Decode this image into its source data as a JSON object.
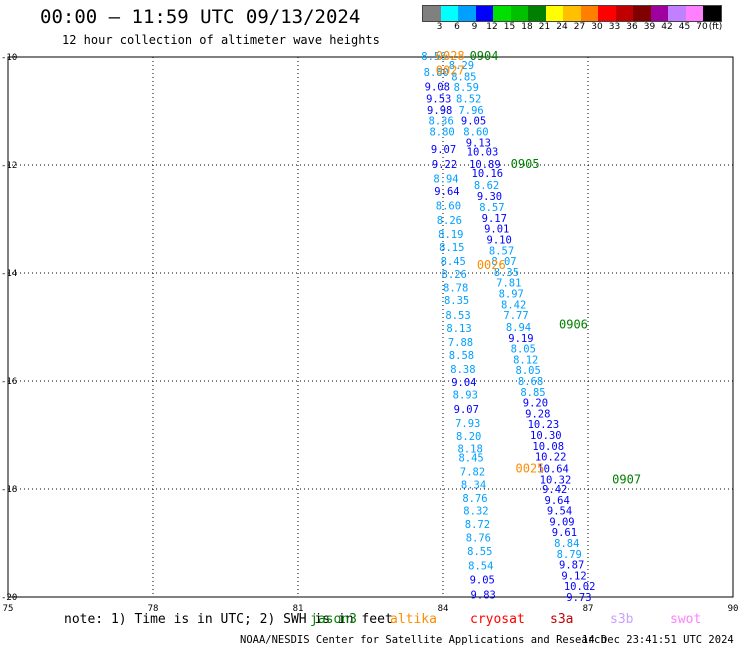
{
  "header": {
    "title": "00:00 – 11:59 UTC 09/13/2024",
    "subtitle": "12 hour collection of altimeter wave heights"
  },
  "legend": {
    "unit": "(ft)",
    "bins": [
      {
        "label": "3",
        "color": "#808080"
      },
      {
        "label": "6",
        "color": "#00ffff"
      },
      {
        "label": "9",
        "color": "#00a0ff"
      },
      {
        "label": "12",
        "color": "#0000ff"
      },
      {
        "label": "15",
        "color": "#00e000"
      },
      {
        "label": "18",
        "color": "#00c000"
      },
      {
        "label": "21",
        "color": "#008000"
      },
      {
        "label": "24",
        "color": "#ffff00"
      },
      {
        "label": "27",
        "color": "#ffc000"
      },
      {
        "label": "30",
        "color": "#ff8000"
      },
      {
        "label": "33",
        "color": "#ff0000"
      },
      {
        "label": "36",
        "color": "#c00000"
      },
      {
        "label": "39",
        "color": "#800000"
      },
      {
        "label": "42",
        "color": "#a000a0"
      },
      {
        "label": "45",
        "color": "#c080ff"
      },
      {
        "label": "70",
        "color": "#ff80ff"
      },
      {
        "label": "",
        "color": "#000000"
      }
    ]
  },
  "note": {
    "text": "note: 1) Time is in UTC; 2) SWH is in feet",
    "satellites": [
      {
        "name": "jason3",
        "color": "#008000"
      },
      {
        "name": "altika",
        "color": "#ff8c00"
      },
      {
        "name": "cryosat",
        "color": "#ff0000"
      },
      {
        "name": "s3a",
        "color": "#c00000"
      },
      {
        "name": "s3b",
        "color": "#c8a0ff"
      },
      {
        "name": "swot",
        "color": "#ff80ff"
      }
    ]
  },
  "footer": {
    "credit": "NOAA/NESDIS Center for Satellite Applications and Research",
    "date": "14 Dec 23:41:51 UTC 2024"
  },
  "chart_data": {
    "type": "scatter",
    "title": "00:00 – 11:59 UTC 09/13/2024",
    "subtitle": "12 hour collection of altimeter wave heights",
    "xlabel": "",
    "ylabel": "",
    "xlim": [
      75,
      90
    ],
    "ylim": [
      -20,
      -10
    ],
    "x_ticks": [
      75,
      78,
      81,
      84,
      87,
      90
    ],
    "y_ticks": [
      -10,
      -12,
      -14,
      -16,
      -18,
      -20
    ],
    "x_tick_labels": [
      "75",
      "78",
      "81",
      "84",
      "87",
      "90"
    ],
    "y_tick_labels": [
      "-10",
      "-12",
      "-14",
      "-16",
      "-18",
      "-20"
    ],
    "grid": true,
    "time_labels": [
      {
        "text": "0028",
        "x": 83.85,
        "y": -9.98,
        "color": "#ff8c00"
      },
      {
        "text": "0904",
        "x": 84.55,
        "y": -9.98,
        "color": "#008000"
      },
      {
        "text": "0027",
        "x": 83.85,
        "y": -10.25,
        "color": "#ff8c00"
      },
      {
        "text": "0905",
        "x": 85.4,
        "y": -11.98,
        "color": "#008000"
      },
      {
        "text": "0026",
        "x": 84.7,
        "y": -13.85,
        "color": "#ff8c00"
      },
      {
        "text": "0906",
        "x": 86.4,
        "y": -14.95,
        "color": "#008000"
      },
      {
        "text": "0025",
        "x": 85.5,
        "y": -17.62,
        "color": "#ff8c00"
      },
      {
        "text": "0907",
        "x": 87.5,
        "y": -17.82,
        "color": "#008000"
      }
    ],
    "points": [
      {
        "x": 83.55,
        "y": -9.98,
        "value": "8.56",
        "color": "#00a0ff"
      },
      {
        "x": 84.12,
        "y": -10.15,
        "value": "8.29",
        "color": "#00a0ff"
      },
      {
        "x": 83.6,
        "y": -10.28,
        "value": "8.80",
        "color": "#00a0ff"
      },
      {
        "x": 84.17,
        "y": -10.36,
        "value": "8.85",
        "color": "#00a0ff"
      },
      {
        "x": 83.62,
        "y": -10.55,
        "value": "9.08",
        "color": "#0000ff"
      },
      {
        "x": 84.22,
        "y": -10.56,
        "value": "8.59",
        "color": "#00a0ff"
      },
      {
        "x": 83.65,
        "y": -10.77,
        "value": "9.53",
        "color": "#0000ff"
      },
      {
        "x": 84.27,
        "y": -10.77,
        "value": "8.52",
        "color": "#00a0ff"
      },
      {
        "x": 83.67,
        "y": -10.98,
        "value": "9.98",
        "color": "#0000ff"
      },
      {
        "x": 84.32,
        "y": -10.98,
        "value": "7.96",
        "color": "#00a0ff"
      },
      {
        "x": 83.7,
        "y": -11.18,
        "value": "8.36",
        "color": "#00a0ff"
      },
      {
        "x": 84.37,
        "y": -11.18,
        "value": "9.05",
        "color": "#0000ff"
      },
      {
        "x": 83.72,
        "y": -11.38,
        "value": "8.80",
        "color": "#00a0ff"
      },
      {
        "x": 84.42,
        "y": -11.38,
        "value": "8.60",
        "color": "#00a0ff"
      },
      {
        "x": 84.47,
        "y": -11.58,
        "value": "9.13",
        "color": "#0000ff"
      },
      {
        "x": 83.75,
        "y": -11.7,
        "value": "9.07",
        "color": "#0000ff"
      },
      {
        "x": 84.49,
        "y": -11.75,
        "value": "10.03",
        "color": "#0000ff"
      },
      {
        "x": 83.77,
        "y": -11.98,
        "value": "9.22",
        "color": "#0000ff"
      },
      {
        "x": 84.54,
        "y": -11.98,
        "value": "10.89",
        "color": "#0000ff"
      },
      {
        "x": 83.8,
        "y": -12.25,
        "value": "8.94",
        "color": "#00a0ff"
      },
      {
        "x": 84.59,
        "y": -12.15,
        "value": "10.16",
        "color": "#0000ff"
      },
      {
        "x": 84.64,
        "y": -12.37,
        "value": "8.62",
        "color": "#00a0ff"
      },
      {
        "x": 83.82,
        "y": -12.48,
        "value": "9.64",
        "color": "#0000ff"
      },
      {
        "x": 84.7,
        "y": -12.57,
        "value": "9.30",
        "color": "#0000ff"
      },
      {
        "x": 83.85,
        "y": -12.75,
        "value": "8.60",
        "color": "#00a0ff"
      },
      {
        "x": 84.75,
        "y": -12.78,
        "value": "8.57",
        "color": "#00a0ff"
      },
      {
        "x": 83.87,
        "y": -13.02,
        "value": "8.26",
        "color": "#00a0ff"
      },
      {
        "x": 84.8,
        "y": -12.98,
        "value": "9.17",
        "color": "#0000ff"
      },
      {
        "x": 83.9,
        "y": -13.28,
        "value": "8.19",
        "color": "#00a0ff"
      },
      {
        "x": 84.85,
        "y": -13.18,
        "value": "9.01",
        "color": "#0000ff"
      },
      {
        "x": 84.9,
        "y": -13.38,
        "value": "9.10",
        "color": "#0000ff"
      },
      {
        "x": 83.92,
        "y": -13.52,
        "value": "8.15",
        "color": "#00a0ff"
      },
      {
        "x": 84.95,
        "y": -13.58,
        "value": "8.57",
        "color": "#00a0ff"
      },
      {
        "x": 83.95,
        "y": -13.78,
        "value": "8.45",
        "color": "#00a0ff"
      },
      {
        "x": 85.0,
        "y": -13.78,
        "value": "8.07",
        "color": "#00a0ff"
      },
      {
        "x": 83.97,
        "y": -14.02,
        "value": "8.26",
        "color": "#00a0ff"
      },
      {
        "x": 85.05,
        "y": -13.98,
        "value": "8.35",
        "color": "#00a0ff"
      },
      {
        "x": 85.1,
        "y": -14.18,
        "value": "7.81",
        "color": "#00a0ff"
      },
      {
        "x": 84.0,
        "y": -14.27,
        "value": "8.78",
        "color": "#00a0ff"
      },
      {
        "x": 85.15,
        "y": -14.38,
        "value": "8.97",
        "color": "#00a0ff"
      },
      {
        "x": 84.02,
        "y": -14.5,
        "value": "8.35",
        "color": "#00a0ff"
      },
      {
        "x": 85.2,
        "y": -14.58,
        "value": "8.42",
        "color": "#00a0ff"
      },
      {
        "x": 84.05,
        "y": -14.78,
        "value": "8.53",
        "color": "#00a0ff"
      },
      {
        "x": 85.25,
        "y": -14.78,
        "value": "7.77",
        "color": "#00a0ff"
      },
      {
        "x": 84.07,
        "y": -15.02,
        "value": "8.13",
        "color": "#00a0ff"
      },
      {
        "x": 85.3,
        "y": -15.0,
        "value": "8.94",
        "color": "#00a0ff"
      },
      {
        "x": 84.1,
        "y": -15.28,
        "value": "7.88",
        "color": "#00a0ff"
      },
      {
        "x": 85.35,
        "y": -15.2,
        "value": "9.19",
        "color": "#0000ff"
      },
      {
        "x": 85.4,
        "y": -15.4,
        "value": "8.05",
        "color": "#00a0ff"
      },
      {
        "x": 84.12,
        "y": -15.52,
        "value": "8.58",
        "color": "#00a0ff"
      },
      {
        "x": 85.45,
        "y": -15.6,
        "value": "8.12",
        "color": "#00a0ff"
      },
      {
        "x": 84.15,
        "y": -15.78,
        "value": "8.38",
        "color": "#00a0ff"
      },
      {
        "x": 85.5,
        "y": -15.8,
        "value": "8.05",
        "color": "#00a0ff"
      },
      {
        "x": 84.17,
        "y": -16.02,
        "value": "9.04",
        "color": "#0000ff"
      },
      {
        "x": 85.55,
        "y": -16.0,
        "value": "8.68",
        "color": "#00a0ff"
      },
      {
        "x": 85.6,
        "y": -16.2,
        "value": "8.85",
        "color": "#00a0ff"
      },
      {
        "x": 84.2,
        "y": -16.25,
        "value": "8.93",
        "color": "#00a0ff"
      },
      {
        "x": 85.65,
        "y": -16.4,
        "value": "9.20",
        "color": "#0000ff"
      },
      {
        "x": 84.22,
        "y": -16.52,
        "value": "9.07",
        "color": "#0000ff"
      },
      {
        "x": 85.7,
        "y": -16.6,
        "value": "9.28",
        "color": "#0000ff"
      },
      {
        "x": 84.25,
        "y": -16.78,
        "value": "7.93",
        "color": "#00a0ff"
      },
      {
        "x": 85.75,
        "y": -16.8,
        "value": "10.23",
        "color": "#0000ff"
      },
      {
        "x": 85.8,
        "y": -17.0,
        "value": "10.30",
        "color": "#0000ff"
      },
      {
        "x": 84.27,
        "y": -17.02,
        "value": "8.20",
        "color": "#00a0ff"
      },
      {
        "x": 85.85,
        "y": -17.2,
        "value": "10.08",
        "color": "#0000ff"
      },
      {
        "x": 84.3,
        "y": -17.25,
        "value": "8.18",
        "color": "#00a0ff"
      },
      {
        "x": 85.9,
        "y": -17.4,
        "value": "10.22",
        "color": "#0000ff"
      },
      {
        "x": 84.32,
        "y": -17.42,
        "value": "8.45",
        "color": "#00a0ff"
      },
      {
        "x": 84.35,
        "y": -17.68,
        "value": "7.82",
        "color": "#00a0ff"
      },
      {
        "x": 85.95,
        "y": -17.62,
        "value": "10.64",
        "color": "#0000ff"
      },
      {
        "x": 84.37,
        "y": -17.92,
        "value": "8.34",
        "color": "#00a0ff"
      },
      {
        "x": 86.0,
        "y": -17.82,
        "value": "10.32",
        "color": "#0000ff"
      },
      {
        "x": 86.05,
        "y": -18.0,
        "value": "9.42",
        "color": "#0000ff"
      },
      {
        "x": 84.4,
        "y": -18.17,
        "value": "8.76",
        "color": "#00a0ff"
      },
      {
        "x": 86.1,
        "y": -18.2,
        "value": "9.64",
        "color": "#0000ff"
      },
      {
        "x": 84.42,
        "y": -18.4,
        "value": "8.32",
        "color": "#00a0ff"
      },
      {
        "x": 86.15,
        "y": -18.4,
        "value": "9.54",
        "color": "#0000ff"
      },
      {
        "x": 84.45,
        "y": -18.65,
        "value": "8.72",
        "color": "#00a0ff"
      },
      {
        "x": 86.2,
        "y": -18.6,
        "value": "9.09",
        "color": "#0000ff"
      },
      {
        "x": 84.47,
        "y": -18.9,
        "value": "8.76",
        "color": "#00a0ff"
      },
      {
        "x": 86.25,
        "y": -18.8,
        "value": "9.61",
        "color": "#0000ff"
      },
      {
        "x": 86.3,
        "y": -19.0,
        "value": "8.84",
        "color": "#00a0ff"
      },
      {
        "x": 84.5,
        "y": -19.15,
        "value": "8.55",
        "color": "#00a0ff"
      },
      {
        "x": 86.35,
        "y": -19.2,
        "value": "8.79",
        "color": "#00a0ff"
      },
      {
        "x": 84.52,
        "y": -19.42,
        "value": "8.54",
        "color": "#00a0ff"
      },
      {
        "x": 86.4,
        "y": -19.4,
        "value": "9.87",
        "color": "#0000ff"
      },
      {
        "x": 84.55,
        "y": -19.68,
        "value": "9.05",
        "color": "#0000ff"
      },
      {
        "x": 86.45,
        "y": -19.6,
        "value": "9.12",
        "color": "#0000ff"
      },
      {
        "x": 86.5,
        "y": -19.8,
        "value": "10.02",
        "color": "#0000ff"
      },
      {
        "x": 84.57,
        "y": -19.95,
        "value": "9.83",
        "color": "#0000ff"
      },
      {
        "x": 86.55,
        "y": -20.0,
        "value": "9.73",
        "color": "#0000ff"
      }
    ]
  }
}
